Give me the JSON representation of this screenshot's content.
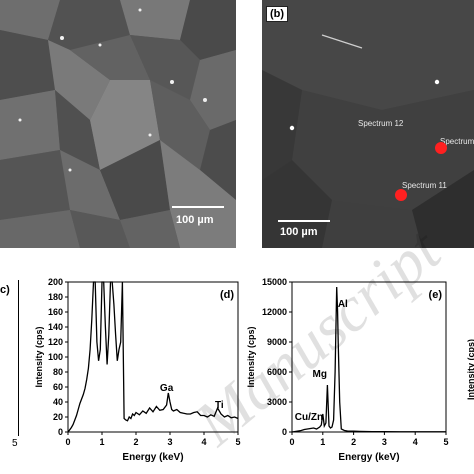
{
  "panel_a": {
    "scale_label": "100 µm"
  },
  "panel_b": {
    "tag": "(b)",
    "scale_label": "100 µm",
    "spectra": [
      "Spectrum 12",
      "Spectrum 11",
      "Spectrum"
    ]
  },
  "panel_c": {
    "tag": "c)",
    "x_tick_partial": "5"
  },
  "panel_e_right": {
    "ylabel_partial": "Intensity (cps)"
  },
  "watermark": "Manuscript",
  "chart_data": [
    {
      "type": "line",
      "id": "d",
      "tag": "(d)",
      "xlabel": "Energy (keV)",
      "ylabel": "Intensity (cps)",
      "xlim": [
        0,
        5
      ],
      "ylim": [
        0,
        200
      ],
      "xticks": [
        "0",
        "1",
        "2",
        "3",
        "4",
        "5"
      ],
      "yticks": [
        "0",
        "20",
        "40",
        "60",
        "80",
        "100",
        "120",
        "140",
        "160",
        "180",
        "200"
      ],
      "annotations": [
        {
          "text": "Ga",
          "x": 2.9,
          "y": 55
        },
        {
          "text": "Ti",
          "x": 4.45,
          "y": 32
        }
      ],
      "series": [
        {
          "x": [
            0.0,
            0.05,
            0.1,
            0.15,
            0.2,
            0.25,
            0.3,
            0.35,
            0.4,
            0.45,
            0.5,
            0.55,
            0.6,
            0.65,
            0.7,
            0.75,
            0.8,
            0.85,
            0.9,
            0.95,
            1.0,
            1.05,
            1.1,
            1.15,
            1.2,
            1.25,
            1.3,
            1.35,
            1.4,
            1.45,
            1.5,
            1.55,
            1.6,
            1.65,
            1.7,
            1.75,
            1.8,
            1.85,
            1.9,
            1.95,
            2.0,
            2.1,
            2.2,
            2.3,
            2.4,
            2.5,
            2.6,
            2.7,
            2.8,
            2.9,
            2.95,
            3.0,
            3.05,
            3.1,
            3.2,
            3.3,
            3.4,
            3.5,
            3.6,
            3.7,
            3.8,
            3.9,
            4.0,
            4.1,
            4.2,
            4.3,
            4.4,
            4.5,
            4.6,
            4.7,
            4.8,
            4.9,
            5.0
          ],
          "y": [
            0,
            3,
            6,
            10,
            16,
            22,
            30,
            38,
            44,
            50,
            58,
            70,
            85,
            110,
            150,
            200,
            200,
            120,
            95,
            110,
            200,
            200,
            140,
            90,
            130,
            200,
            200,
            170,
            130,
            95,
            110,
            120,
            200,
            18,
            16,
            15,
            20,
            18,
            24,
            22,
            26,
            23,
            28,
            25,
            32,
            27,
            34,
            29,
            30,
            36,
            52,
            40,
            30,
            28,
            30,
            26,
            25,
            24,
            24,
            26,
            27,
            22,
            22,
            20,
            23,
            21,
            32,
            24,
            20,
            22,
            19,
            20,
            18
          ]
        }
      ]
    },
    {
      "type": "line",
      "id": "e",
      "tag": "(e)",
      "xlabel": "Energy (keV)",
      "ylabel": "Intensity (cps)",
      "xlim": [
        0,
        5
      ],
      "ylim": [
        0,
        15000
      ],
      "xticks": [
        "0",
        "1",
        "2",
        "3",
        "4",
        "5"
      ],
      "yticks": [
        "0",
        "3000",
        "6000",
        "9000",
        "12000",
        "15000"
      ],
      "annotations": [
        {
          "text": "Al",
          "x": 1.65,
          "y": 12500
        },
        {
          "text": "Mg",
          "x": 0.9,
          "y": 5500
        },
        {
          "text": "Cu/Zn",
          "x": 0.55,
          "y": 1200
        }
      ],
      "series": [
        {
          "x": [
            0.0,
            0.1,
            0.2,
            0.3,
            0.4,
            0.5,
            0.6,
            0.7,
            0.8,
            0.9,
            0.95,
            1.0,
            1.05,
            1.1,
            1.15,
            1.2,
            1.25,
            1.3,
            1.35,
            1.4,
            1.45,
            1.48,
            1.5,
            1.55,
            1.6,
            1.7,
            1.8,
            2.0,
            2.2,
            2.4,
            2.6,
            2.8,
            3.0,
            3.5,
            4.0,
            4.5,
            5.0
          ],
          "y": [
            0,
            50,
            100,
            150,
            250,
            300,
            350,
            400,
            300,
            500,
            700,
            1800,
            600,
            900,
            4700,
            600,
            400,
            500,
            1200,
            6000,
            14500,
            12000,
            9000,
            3000,
            300,
            150,
            100,
            80,
            60,
            50,
            40,
            30,
            30,
            25,
            20,
            20,
            15
          ]
        }
      ]
    }
  ]
}
